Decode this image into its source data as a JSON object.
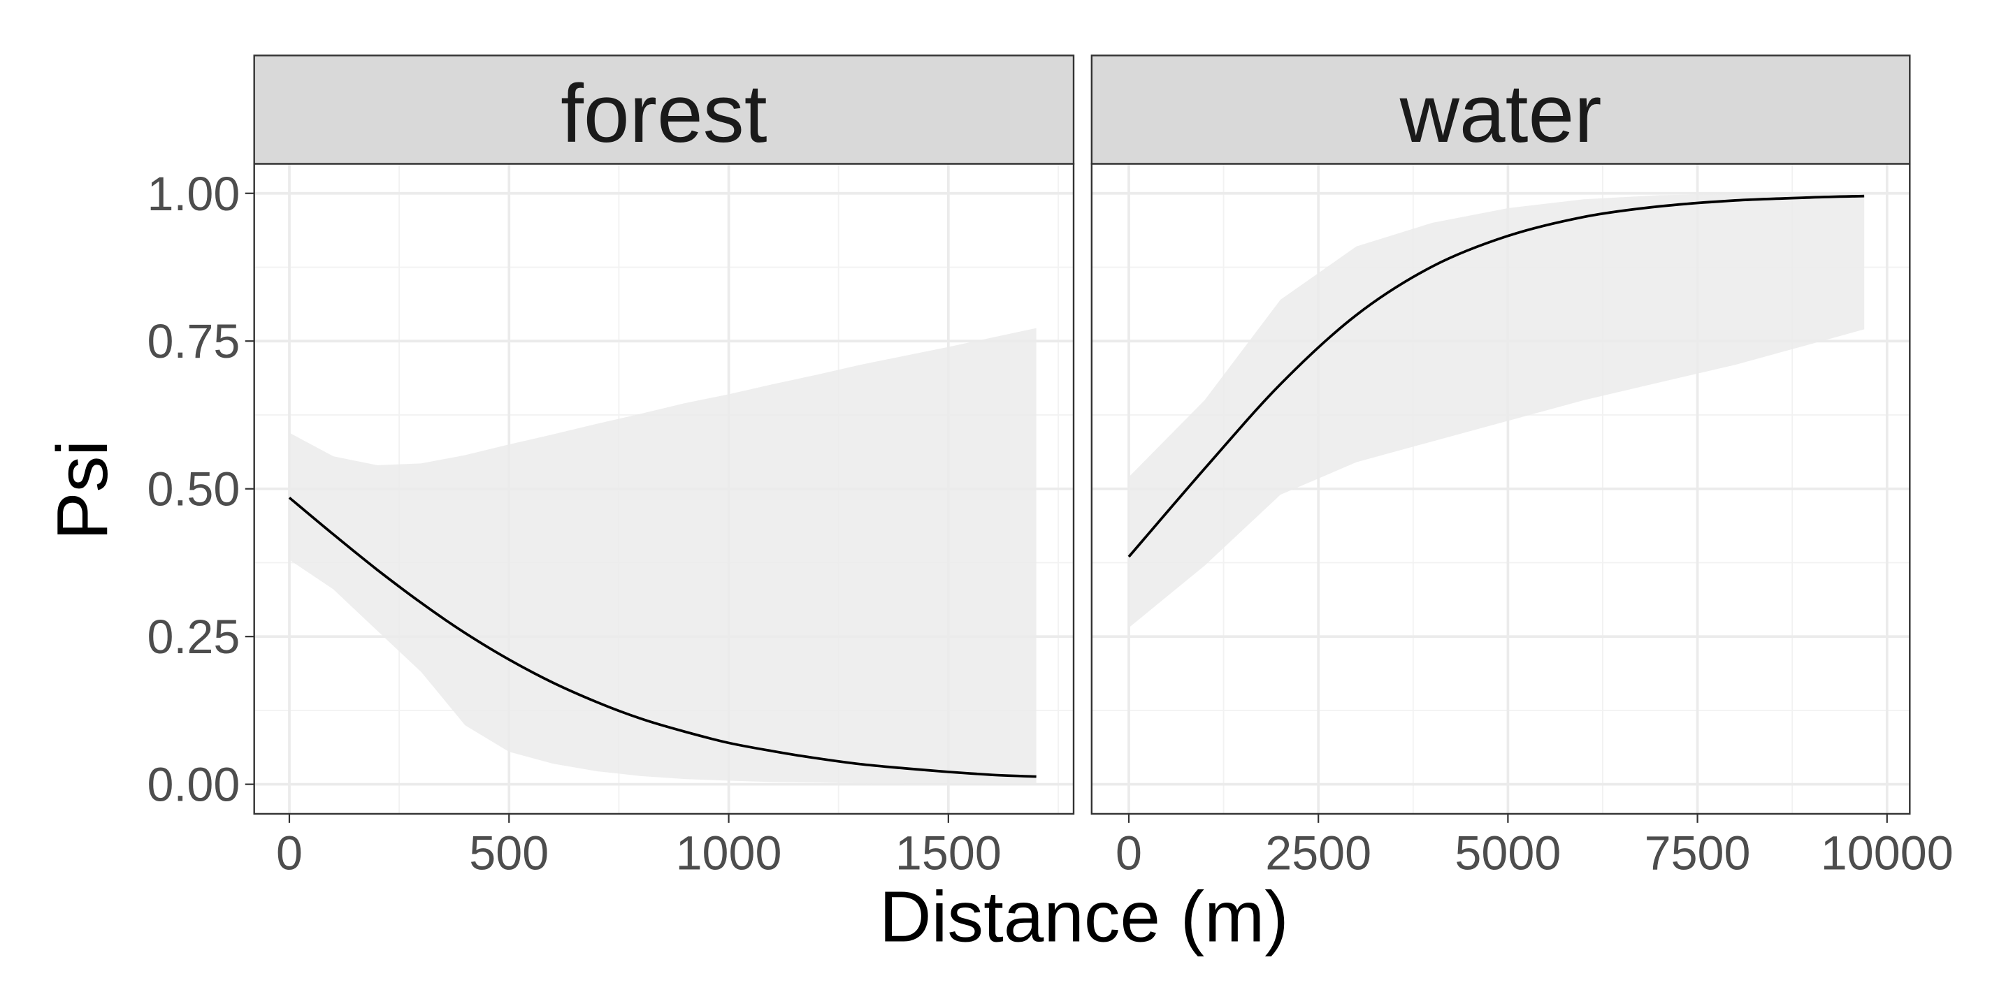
{
  "chart_data": {
    "type": "line",
    "xlabel": "Distance (m)",
    "ylabel": "Psi",
    "ylim": [
      0,
      1
    ],
    "yticks": [
      0,
      0.25,
      0.5,
      0.75,
      1.0
    ],
    "ytick_labels": [
      "0.00",
      "0.25",
      "0.50",
      "0.75",
      "1.00"
    ],
    "grid": true,
    "band_color": "#ebebeb",
    "line_color": "#000000",
    "panels": [
      {
        "title": "forest",
        "xlim": [
          -80,
          1785
        ],
        "xticks": [
          0,
          500,
          1000,
          1500
        ],
        "xtick_labels": [
          "0",
          "500",
          "1000",
          "1500"
        ],
        "x": [
          0,
          100,
          200,
          300,
          400,
          500,
          600,
          700,
          800,
          900,
          1000,
          1100,
          1200,
          1300,
          1400,
          1500,
          1600,
          1700
        ],
        "fit": [
          0.485,
          0.423,
          0.363,
          0.307,
          0.256,
          0.211,
          0.172,
          0.139,
          0.111,
          0.089,
          0.07,
          0.056,
          0.044,
          0.034,
          0.027,
          0.021,
          0.016,
          0.013
        ],
        "lower": [
          0.38,
          0.33,
          0.26,
          0.19,
          0.1,
          0.055,
          0.035,
          0.022,
          0.014,
          0.009,
          0.006,
          0.004,
          0.003,
          0.002,
          0.001,
          0.001,
          0.0,
          0.0
        ],
        "upper": [
          0.595,
          0.555,
          0.54,
          0.543,
          0.557,
          0.575,
          0.592,
          0.61,
          0.627,
          0.645,
          0.66,
          0.677,
          0.693,
          0.71,
          0.725,
          0.74,
          0.756,
          0.772
        ]
      },
      {
        "title": "water",
        "xlim": [
          -490,
          10300
        ],
        "xticks": [
          0,
          2500,
          5000,
          7500,
          10000
        ],
        "xtick_labels": [
          "0",
          "2500",
          "5000",
          "7500",
          "10000"
        ],
        "x": [
          0,
          1000,
          2000,
          3000,
          4000,
          5000,
          6000,
          7000,
          8000,
          9000,
          9700
        ],
        "fit": [
          0.385,
          0.534,
          0.677,
          0.794,
          0.876,
          0.928,
          0.96,
          0.978,
          0.988,
          0.993,
          0.9955
        ],
        "lower": [
          0.265,
          0.37,
          0.49,
          0.545,
          0.58,
          0.615,
          0.65,
          0.68,
          0.71,
          0.745,
          0.77
        ],
        "upper": [
          0.52,
          0.65,
          0.82,
          0.91,
          0.95,
          0.975,
          0.99,
          0.997,
          0.999,
          1.0,
          1.0
        ]
      }
    ]
  }
}
